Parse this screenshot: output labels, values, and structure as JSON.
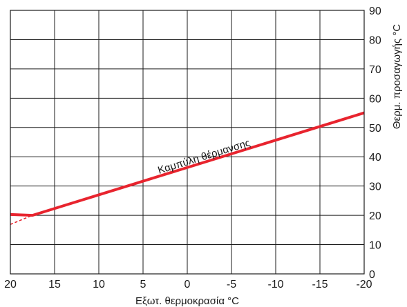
{
  "chart_data": {
    "type": "line",
    "title": "",
    "xlabel": "Εξωτ. θερμοκρασία °C",
    "ylabel": "Θερμ. προσαγωγής °C",
    "xlim": [
      20,
      -20
    ],
    "ylim": [
      0,
      90
    ],
    "x_ticks": [
      20,
      15,
      10,
      5,
      0,
      -5,
      -10,
      -15,
      -20
    ],
    "x_tick_labels": [
      "20",
      "15",
      "10",
      "5",
      "0",
      "-5",
      "-10",
      "-15",
      "-20"
    ],
    "y_ticks": [
      0,
      10,
      20,
      30,
      40,
      50,
      60,
      70,
      80,
      90
    ],
    "y_tick_labels": [
      "0",
      "10",
      "20",
      "30",
      "40",
      "50",
      "60",
      "70",
      "80",
      "90"
    ],
    "grid": true,
    "y_axis_side": "right",
    "series": [
      {
        "name": "Καμπύλη θέρμανσης",
        "points": [
          {
            "x": 20,
            "y": 20.3
          },
          {
            "x": 17.5,
            "y": 20.0
          },
          {
            "x": -20,
            "y": 55.0
          }
        ],
        "extension": [
          {
            "x": 20,
            "y": 16.9
          },
          {
            "x": 17.5,
            "y": 20.0
          }
        ],
        "color": "#e8242e"
      }
    ],
    "annotations": [
      {
        "text": "Καμπύλη θέρμανσης",
        "x": -2,
        "y": 39
      }
    ]
  }
}
